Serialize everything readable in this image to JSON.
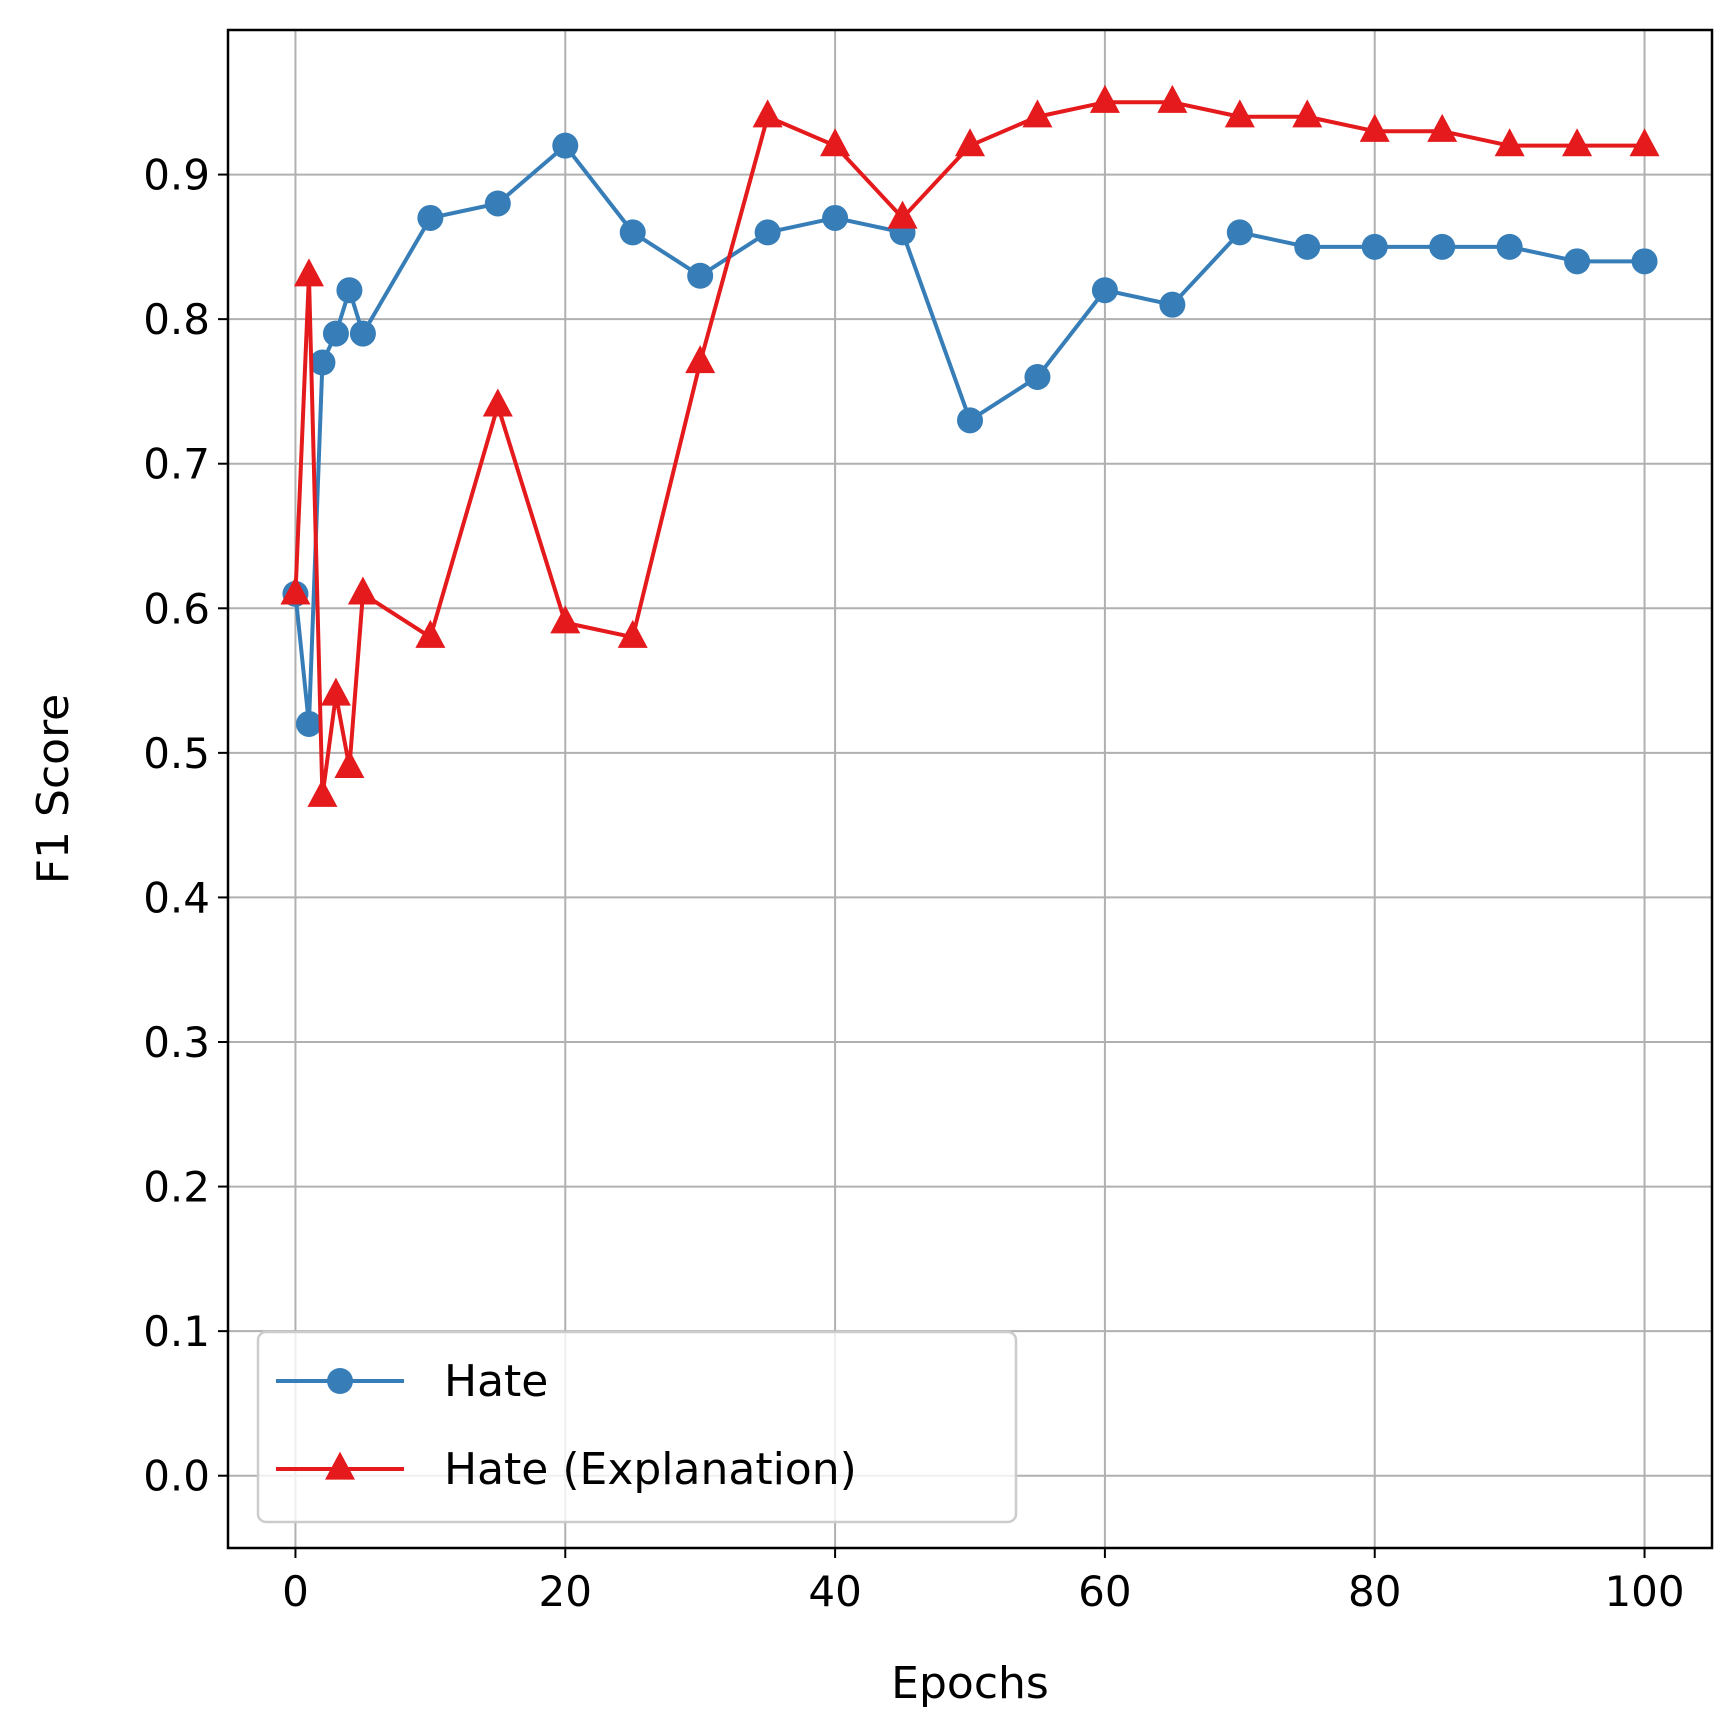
{
  "chart_data": {
    "type": "line",
    "title": "",
    "xlabel": "Epochs",
    "ylabel": "F1 Score",
    "xlim": [
      -5,
      105
    ],
    "ylim": [
      -0.05,
      1.0
    ],
    "xticks": [
      0,
      20,
      40,
      60,
      80,
      100
    ],
    "xtick_labels": [
      "0",
      "20",
      "40",
      "60",
      "80",
      "100"
    ],
    "yticks": [
      0.0,
      0.1,
      0.2,
      0.3,
      0.4,
      0.5,
      0.6,
      0.7,
      0.8,
      0.9
    ],
    "ytick_labels": [
      "0.0",
      "0.1",
      "0.2",
      "0.3",
      "0.4",
      "0.5",
      "0.6",
      "0.7",
      "0.8",
      "0.9"
    ],
    "grid": true,
    "legend_position": "lower-left",
    "x": [
      0,
      1,
      2,
      3,
      4,
      5,
      10,
      15,
      20,
      25,
      30,
      35,
      40,
      45,
      50,
      55,
      60,
      65,
      70,
      75,
      80,
      85,
      90,
      95,
      100
    ],
    "series": [
      {
        "name": "Hate",
        "color": "#377eb8",
        "marker": "circle",
        "values": [
          0.61,
          0.52,
          0.77,
          0.79,
          0.82,
          0.79,
          0.87,
          0.88,
          0.92,
          0.86,
          0.83,
          0.86,
          0.87,
          0.86,
          0.73,
          0.76,
          0.82,
          0.81,
          0.86,
          0.85,
          0.85,
          0.85,
          0.85,
          0.84,
          0.84
        ]
      },
      {
        "name": "Hate (Explanation)",
        "color": "#e41a1c",
        "marker": "triangle",
        "values": [
          0.61,
          0.83,
          0.47,
          0.54,
          0.49,
          0.61,
          0.58,
          0.74,
          0.59,
          0.58,
          0.77,
          0.94,
          0.92,
          0.87,
          0.92,
          0.94,
          0.95,
          0.95,
          0.94,
          0.94,
          0.93,
          0.93,
          0.92,
          0.92,
          0.92
        ]
      }
    ]
  }
}
